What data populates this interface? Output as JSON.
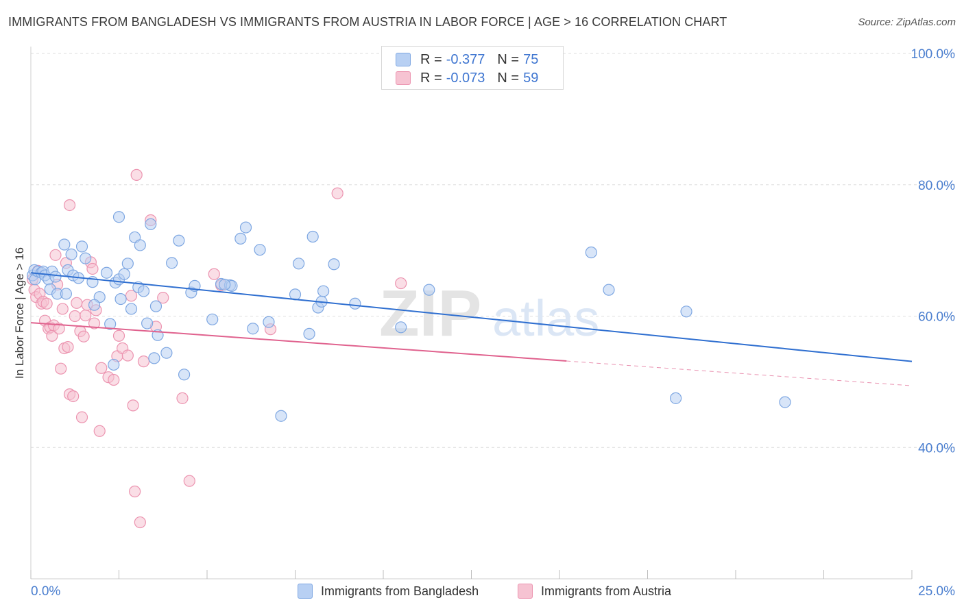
{
  "title": "IMMIGRANTS FROM BANGLADESH VS IMMIGRANTS FROM AUSTRIA IN LABOR FORCE | AGE > 16 CORRELATION CHART",
  "source": "Source: ZipAtlas.com",
  "watermark": {
    "zip": "ZIP",
    "atlas": "atlas"
  },
  "legend": {
    "rows": [
      {
        "r_label": "R =",
        "r_value": "-0.377",
        "n_label": "N =",
        "n_value": "75"
      },
      {
        "r_label": "R =",
        "r_value": "-0.073",
        "n_label": "N =",
        "n_value": "59"
      }
    ]
  },
  "colors": {
    "blue_fill": "#b8d0f3",
    "blue_stroke": "#7ea7e2",
    "blue_line": "#2f6fd0",
    "pink_fill": "#f6c3d2",
    "pink_stroke": "#ec94b0",
    "pink_line": "#e0628e",
    "grid": "#dcdcdc",
    "tick_text": "#4a7ecf"
  },
  "chart_data": {
    "type": "scatter",
    "title": "IMMIGRANTS FROM BANGLADESH VS IMMIGRANTS FROM AUSTRIA IN LABOR FORCE | AGE > 16 CORRELATION CHART",
    "xlabel": "",
    "ylabel": "In Labor Force | Age > 16",
    "xlim": [
      0,
      25
    ],
    "ylim": [
      20,
      102
    ],
    "x_tick_labels": [
      "0.0%",
      "25.0%"
    ],
    "y_ticks": [
      40,
      60,
      80,
      100
    ],
    "y_tick_labels": [
      "40.0%",
      "60.0%",
      "80.0%",
      "100.0%"
    ],
    "series": [
      {
        "name": "Immigrants from Bangladesh",
        "R": -0.377,
        "N": 75,
        "trend": {
          "x0": 0,
          "y0": 66.6,
          "x1": 25,
          "y1": 53.1,
          "solid_until": 25
        },
        "points": [
          [
            0.05,
            66.2
          ],
          [
            0.1,
            67.0
          ],
          [
            0.12,
            65.6
          ],
          [
            0.2,
            66.8
          ],
          [
            0.3,
            66.6
          ],
          [
            0.35,
            66.8
          ],
          [
            0.4,
            66.2
          ],
          [
            0.5,
            65.6
          ],
          [
            0.55,
            64.1
          ],
          [
            0.6,
            66.8
          ],
          [
            0.7,
            66.0
          ],
          [
            0.75,
            63.4
          ],
          [
            1.0,
            63.4
          ],
          [
            1.05,
            67.0
          ],
          [
            1.2,
            66.2
          ],
          [
            1.35,
            65.8
          ],
          [
            1.45,
            70.6
          ],
          [
            0.95,
            70.9
          ],
          [
            1.15,
            69.4
          ],
          [
            1.55,
            68.8
          ],
          [
            1.75,
            65.2
          ],
          [
            1.95,
            62.9
          ],
          [
            1.8,
            61.7
          ],
          [
            2.15,
            66.6
          ],
          [
            2.4,
            65.1
          ],
          [
            2.5,
            65.6
          ],
          [
            2.25,
            58.8
          ],
          [
            2.35,
            52.6
          ],
          [
            2.55,
            62.6
          ],
          [
            2.5,
            75.1
          ],
          [
            2.65,
            66.4
          ],
          [
            2.85,
            61.1
          ],
          [
            2.75,
            68.0
          ],
          [
            2.95,
            72.0
          ],
          [
            3.1,
            70.8
          ],
          [
            3.05,
            64.4
          ],
          [
            3.2,
            63.8
          ],
          [
            3.3,
            58.9
          ],
          [
            3.4,
            74.0
          ],
          [
            3.55,
            61.5
          ],
          [
            3.6,
            57.1
          ],
          [
            3.85,
            54.4
          ],
          [
            3.5,
            53.6
          ],
          [
            4.0,
            68.1
          ],
          [
            4.2,
            71.5
          ],
          [
            4.35,
            51.1
          ],
          [
            4.55,
            63.6
          ],
          [
            4.65,
            64.6
          ],
          [
            5.15,
            59.5
          ],
          [
            5.4,
            64.9
          ],
          [
            5.65,
            64.7
          ],
          [
            5.7,
            64.6
          ],
          [
            5.95,
            71.8
          ],
          [
            6.1,
            73.5
          ],
          [
            6.3,
            58.1
          ],
          [
            6.5,
            70.1
          ],
          [
            6.75,
            59.1
          ],
          [
            7.1,
            44.8
          ],
          [
            7.5,
            63.3
          ],
          [
            7.6,
            68.0
          ],
          [
            7.9,
            57.3
          ],
          [
            8.0,
            72.1
          ],
          [
            8.15,
            61.3
          ],
          [
            8.25,
            62.2
          ],
          [
            8.3,
            63.8
          ],
          [
            8.6,
            67.9
          ],
          [
            9.2,
            61.9
          ],
          [
            10.5,
            58.3
          ],
          [
            11.3,
            64.0
          ],
          [
            15.9,
            69.7
          ],
          [
            16.4,
            64.0
          ],
          [
            18.3,
            47.5
          ],
          [
            18.6,
            60.7
          ],
          [
            21.4,
            46.9
          ],
          [
            5.5,
            64.8
          ]
        ]
      },
      {
        "name": "Immigrants from Austria",
        "R": -0.073,
        "N": 59,
        "trend": {
          "x0": 0,
          "y0": 59.0,
          "x1": 25,
          "y1": 49.4,
          "solid_until": 15.2
        },
        "points": [
          [
            0.05,
            65.6
          ],
          [
            0.1,
            64.0
          ],
          [
            0.15,
            62.9
          ],
          [
            0.2,
            66.9
          ],
          [
            0.25,
            63.4
          ],
          [
            0.3,
            61.9
          ],
          [
            0.35,
            62.2
          ],
          [
            0.4,
            59.3
          ],
          [
            0.45,
            61.9
          ],
          [
            0.5,
            58.1
          ],
          [
            0.55,
            58.3
          ],
          [
            0.6,
            57.0
          ],
          [
            0.65,
            58.6
          ],
          [
            0.7,
            69.3
          ],
          [
            0.75,
            64.8
          ],
          [
            0.8,
            58.1
          ],
          [
            0.85,
            52.0
          ],
          [
            0.9,
            61.1
          ],
          [
            0.95,
            55.1
          ],
          [
            1.0,
            68.1
          ],
          [
            1.05,
            55.3
          ],
          [
            1.1,
            48.1
          ],
          [
            1.2,
            47.8
          ],
          [
            1.25,
            60.0
          ],
          [
            1.3,
            62.0
          ],
          [
            1.4,
            57.7
          ],
          [
            1.45,
            44.6
          ],
          [
            1.5,
            56.9
          ],
          [
            1.55,
            60.1
          ],
          [
            1.6,
            61.7
          ],
          [
            1.7,
            68.2
          ],
          [
            1.75,
            67.2
          ],
          [
            1.8,
            58.9
          ],
          [
            1.85,
            60.9
          ],
          [
            1.95,
            42.5
          ],
          [
            2.0,
            52.1
          ],
          [
            2.2,
            50.7
          ],
          [
            2.35,
            50.3
          ],
          [
            2.45,
            53.9
          ],
          [
            2.5,
            57.0
          ],
          [
            2.6,
            55.1
          ],
          [
            2.75,
            54.0
          ],
          [
            2.85,
            63.1
          ],
          [
            2.9,
            46.4
          ],
          [
            2.95,
            33.3
          ],
          [
            3.0,
            81.5
          ],
          [
            3.1,
            28.6
          ],
          [
            3.2,
            53.1
          ],
          [
            3.4,
            74.6
          ],
          [
            3.55,
            58.4
          ],
          [
            3.75,
            62.8
          ],
          [
            4.3,
            47.5
          ],
          [
            4.5,
            34.9
          ],
          [
            5.2,
            66.4
          ],
          [
            5.4,
            64.7
          ],
          [
            6.8,
            58.0
          ],
          [
            8.7,
            78.7
          ],
          [
            10.5,
            65.0
          ],
          [
            1.1,
            76.9
          ]
        ]
      }
    ]
  },
  "bottom_legend": [
    {
      "label": "Immigrants from Bangladesh"
    },
    {
      "label": "Immigrants from Austria"
    }
  ]
}
